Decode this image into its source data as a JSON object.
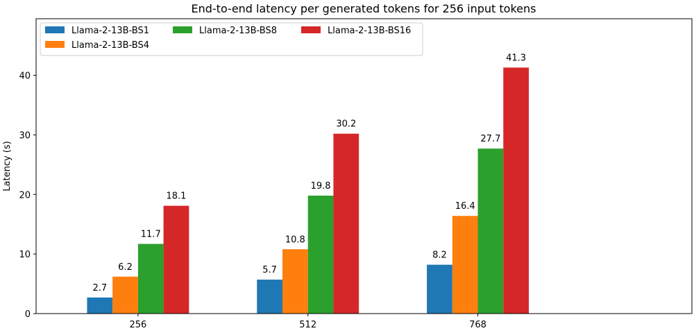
{
  "chart_data": {
    "type": "bar",
    "title": "End-to-end latency per generated tokens for 256 input tokens",
    "xlabel": "",
    "ylabel": "Latency (s)",
    "categories": [
      "256",
      "512",
      "768"
    ],
    "series": [
      {
        "name": "Llama-2-13B-BS1",
        "color": "#1f77b4",
        "values": [
          2.7,
          5.7,
          8.2
        ],
        "labels": [
          "2.7",
          "5.7",
          "8.2"
        ]
      },
      {
        "name": "Llama-2-13B-BS4",
        "color": "#ff7f0e",
        "values": [
          6.2,
          10.8,
          16.4
        ],
        "labels": [
          "6.2",
          "10.8",
          "16.4"
        ]
      },
      {
        "name": "Llama-2-13B-BS8",
        "color": "#2ca02c",
        "values": [
          11.7,
          19.8,
          27.7
        ],
        "labels": [
          "11.7",
          "19.8",
          "27.7"
        ]
      },
      {
        "name": "Llama-2-13B-BS16",
        "color": "#d62728",
        "values": [
          18.1,
          30.2,
          41.3
        ],
        "labels": [
          "18.1",
          "30.2",
          "41.3"
        ]
      }
    ],
    "ylim": [
      0,
      49.5
    ],
    "yticks": [
      0,
      10,
      20,
      30,
      40
    ],
    "grid": false,
    "legend_position": "top-left",
    "legend_columns": 3
  }
}
